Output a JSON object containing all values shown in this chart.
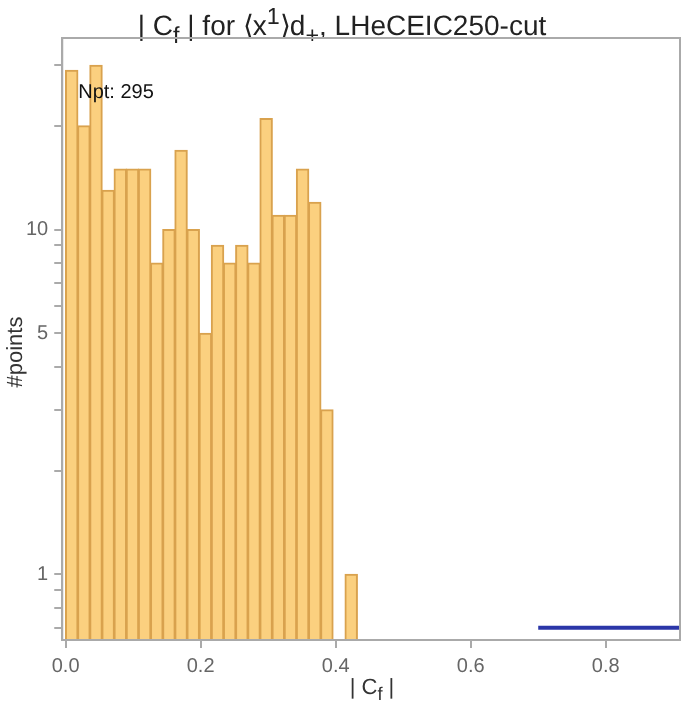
{
  "chart_data": {
    "type": "histogram",
    "title": "| C$_{f}$ | for ⟨x$^{1}$⟩d$_{+}$, LHeCEIC250-cut",
    "xlabel": "| C$_{f}$ |",
    "ylabel": "#points",
    "bins": [
      0,
      0.018,
      0.036,
      0.054,
      0.072,
      0.09,
      0.108,
      0.126,
      0.144,
      0.162,
      0.18,
      0.198,
      0.216,
      0.234,
      0.252,
      0.27,
      0.288,
      0.306,
      0.324,
      0.342,
      0.36,
      0.378,
      0.396,
      0.414,
      0.432
    ],
    "values": [
      29,
      20,
      30,
      13,
      15,
      15,
      15,
      8,
      10,
      17,
      10,
      5,
      9,
      8,
      9,
      8,
      21,
      11,
      11,
      15,
      12,
      3,
      null,
      1
    ],
    "color": "#fbd07f",
    "series": [
      {
        "type": "line",
        "color": "#2b36a8",
        "x": [
          0.7,
          0.91
        ],
        "values": [
          0.7,
          0.7
        ]
      }
    ],
    "xlim": [
      -0.005,
      0.91
    ],
    "ylim": [
      0.645,
      36
    ],
    "log": true,
    "xticks": [
      {
        "value": 0,
        "label": "0.0"
      },
      {
        "value": 0.2,
        "label": "0.2"
      },
      {
        "value": 0.4,
        "label": "0.4"
      },
      {
        "value": 0.6,
        "label": "0.6"
      },
      {
        "value": 0.8,
        "label": "0.8"
      }
    ],
    "yticks": [
      {
        "value": 0.7,
        "label": null
      },
      {
        "value": 0.8,
        "label": null
      },
      {
        "value": 0.9,
        "label": null
      },
      1,
      {
        "value": 2,
        "label": null
      },
      {
        "value": 3,
        "label": null
      },
      {
        "value": 4,
        "label": null
      },
      5,
      {
        "value": 6,
        "label": null
      },
      {
        "value": 7,
        "label": null
      },
      {
        "value": 8,
        "label": null
      },
      {
        "value": 9,
        "label": null
      },
      10,
      {
        "value": 20,
        "label": null
      },
      {
        "value": 30,
        "label": null
      }
    ],
    "grid": false,
    "legend": false,
    "annotations": [
      "Npt: 295"
    ]
  }
}
